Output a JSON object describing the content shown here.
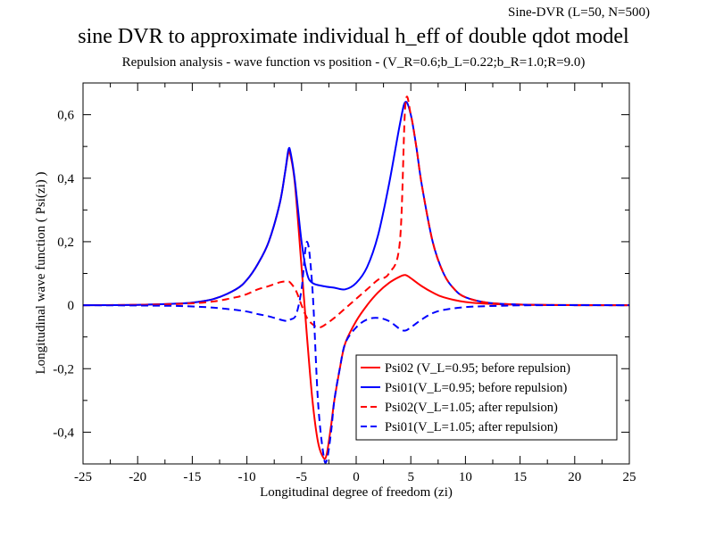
{
  "corner_note": "Sine-DVR (L=50, N=500)",
  "chart_data": {
    "type": "line",
    "title": "sine DVR to approximate individual h_eff of double qdot model",
    "subtitle": "Repulsion analysis - wave function vs position - (V_R=0.6;b_L=0.22;b_R=1.0;R=9.0)",
    "xlabel": "Longitudinal degree of freedom (zi)",
    "ylabel": "Longitudinal wave function ( Psi(zi) )",
    "xlim": [
      -25,
      25
    ],
    "ylim": [
      -0.5,
      0.7
    ],
    "x_ticks": [
      -25,
      -20,
      -15,
      -10,
      -5,
      0,
      5,
      10,
      15,
      20,
      25
    ],
    "x_tick_labels": [
      "-25",
      "-20",
      "-15",
      "-10",
      "-5",
      "0",
      "5",
      "10",
      "15",
      "20",
      "25"
    ],
    "y_ticks": [
      -0.4,
      -0.2,
      0,
      0.2,
      0.4,
      0.6
    ],
    "y_tick_labels": [
      "-0,4",
      "-0,2",
      "0",
      "0,2",
      "0,4",
      "0,6"
    ],
    "grid": false,
    "legend_position": "bottom-right",
    "series": [
      {
        "name": "Psi02 (V_L=0.95; before repulsion)",
        "color": "#ff0000",
        "dash": "solid",
        "points": [
          [
            -25,
            0
          ],
          [
            -20,
            0.001
          ],
          [
            -17,
            0.004
          ],
          [
            -15,
            0.008
          ],
          [
            -13,
            0.02
          ],
          [
            -11,
            0.05
          ],
          [
            -10,
            0.08
          ],
          [
            -9,
            0.13
          ],
          [
            -8,
            0.2
          ],
          [
            -7,
            0.32
          ],
          [
            -6.5,
            0.42
          ],
          [
            -6.2,
            0.48
          ],
          [
            -6,
            0.47
          ],
          [
            -5.6,
            0.38
          ],
          [
            -5,
            0.12
          ],
          [
            -4.5,
            -0.1
          ],
          [
            -4,
            -0.3
          ],
          [
            -3.5,
            -0.43
          ],
          [
            -3,
            -0.48
          ],
          [
            -2.7,
            -0.47
          ],
          [
            -2.3,
            -0.38
          ],
          [
            -2,
            -0.3
          ],
          [
            -1.5,
            -0.2
          ],
          [
            -1,
            -0.12
          ],
          [
            0,
            -0.05
          ],
          [
            1,
            0
          ],
          [
            2,
            0.04
          ],
          [
            3,
            0.07
          ],
          [
            4,
            0.09
          ],
          [
            4.5,
            0.095
          ],
          [
            5,
            0.085
          ],
          [
            6,
            0.06
          ],
          [
            7,
            0.04
          ],
          [
            8,
            0.025
          ],
          [
            10,
            0.01
          ],
          [
            13,
            0.003
          ],
          [
            17,
            0.001
          ],
          [
            25,
            0
          ]
        ]
      },
      {
        "name": "Psi01(V_L=0.95; before repulsion)",
        "color": "#0000ff",
        "dash": "solid",
        "points": [
          [
            -25,
            0
          ],
          [
            -20,
            0.001
          ],
          [
            -17,
            0.004
          ],
          [
            -15,
            0.008
          ],
          [
            -13,
            0.02
          ],
          [
            -11,
            0.05
          ],
          [
            -10,
            0.08
          ],
          [
            -9,
            0.13
          ],
          [
            -8,
            0.2
          ],
          [
            -7,
            0.32
          ],
          [
            -6.5,
            0.42
          ],
          [
            -6.2,
            0.49
          ],
          [
            -6,
            0.48
          ],
          [
            -5.6,
            0.39
          ],
          [
            -5,
            0.2
          ],
          [
            -4.5,
            0.1
          ],
          [
            -4,
            0.07
          ],
          [
            -3,
            0.06
          ],
          [
            -2,
            0.055
          ],
          [
            -1,
            0.05
          ],
          [
            0,
            0.07
          ],
          [
            1,
            0.12
          ],
          [
            2,
            0.22
          ],
          [
            3,
            0.38
          ],
          [
            4,
            0.57
          ],
          [
            4.5,
            0.64
          ],
          [
            5,
            0.6
          ],
          [
            5.5,
            0.5
          ],
          [
            6,
            0.38
          ],
          [
            7,
            0.2
          ],
          [
            8,
            0.1
          ],
          [
            9,
            0.05
          ],
          [
            10,
            0.025
          ],
          [
            12,
            0.008
          ],
          [
            15,
            0.002
          ],
          [
            20,
            0
          ],
          [
            25,
            0
          ]
        ]
      },
      {
        "name": "Psi02(V_L=1.05; after repulsion)",
        "color": "#ff0000",
        "dash": "dashed",
        "points": [
          [
            -25,
            0
          ],
          [
            -20,
            0.001
          ],
          [
            -17,
            0.003
          ],
          [
            -15,
            0.006
          ],
          [
            -13,
            0.012
          ],
          [
            -11,
            0.025
          ],
          [
            -10,
            0.035
          ],
          [
            -9,
            0.05
          ],
          [
            -8,
            0.06
          ],
          [
            -7,
            0.072
          ],
          [
            -6.3,
            0.075
          ],
          [
            -6,
            0.07
          ],
          [
            -5.5,
            0.045
          ],
          [
            -5,
            0.0
          ],
          [
            -4.5,
            -0.04
          ],
          [
            -4,
            -0.06
          ],
          [
            -3.5,
            -0.07
          ],
          [
            -3,
            -0.065
          ],
          [
            -2,
            -0.04
          ],
          [
            -1,
            -0.01
          ],
          [
            0,
            0.02
          ],
          [
            1,
            0.05
          ],
          [
            2,
            0.08
          ],
          [
            3,
            0.1
          ],
          [
            4,
            0.2
          ],
          [
            4.5,
            0.63
          ],
          [
            5,
            0.6
          ],
          [
            5.5,
            0.5
          ],
          [
            6,
            0.38
          ],
          [
            7,
            0.2
          ],
          [
            8,
            0.1
          ],
          [
            9,
            0.05
          ],
          [
            10,
            0.025
          ],
          [
            12,
            0.008
          ],
          [
            15,
            0.002
          ],
          [
            20,
            0
          ],
          [
            25,
            0
          ]
        ]
      },
      {
        "name": "Psi01(V_L=1.05; after repulsion)",
        "color": "#0000ff",
        "dash": "dashed",
        "points": [
          [
            -25,
            0
          ],
          [
            -20,
            -0.001
          ],
          [
            -17,
            -0.002
          ],
          [
            -15,
            -0.004
          ],
          [
            -13,
            -0.008
          ],
          [
            -11,
            -0.015
          ],
          [
            -10,
            -0.02
          ],
          [
            -9,
            -0.028
          ],
          [
            -8,
            -0.035
          ],
          [
            -7,
            -0.045
          ],
          [
            -6.3,
            -0.05
          ],
          [
            -6,
            -0.045
          ],
          [
            -5.5,
            -0.03
          ],
          [
            -5,
            0.05
          ],
          [
            -4.5,
            0.2
          ],
          [
            -4,
            0.05
          ],
          [
            -3.5,
            -0.3
          ],
          [
            -3,
            -0.47
          ],
          [
            -2.7,
            -0.49
          ],
          [
            -2.3,
            -0.4
          ],
          [
            -2,
            -0.3
          ],
          [
            -1.5,
            -0.2
          ],
          [
            -1,
            -0.12
          ],
          [
            0,
            -0.07
          ],
          [
            1,
            -0.045
          ],
          [
            2,
            -0.04
          ],
          [
            3,
            -0.05
          ],
          [
            4,
            -0.075
          ],
          [
            4.5,
            -0.08
          ],
          [
            5,
            -0.07
          ],
          [
            6,
            -0.045
          ],
          [
            7,
            -0.025
          ],
          [
            8,
            -0.015
          ],
          [
            10,
            -0.006
          ],
          [
            13,
            -0.002
          ],
          [
            17,
            0
          ],
          [
            25,
            0
          ]
        ]
      }
    ]
  }
}
